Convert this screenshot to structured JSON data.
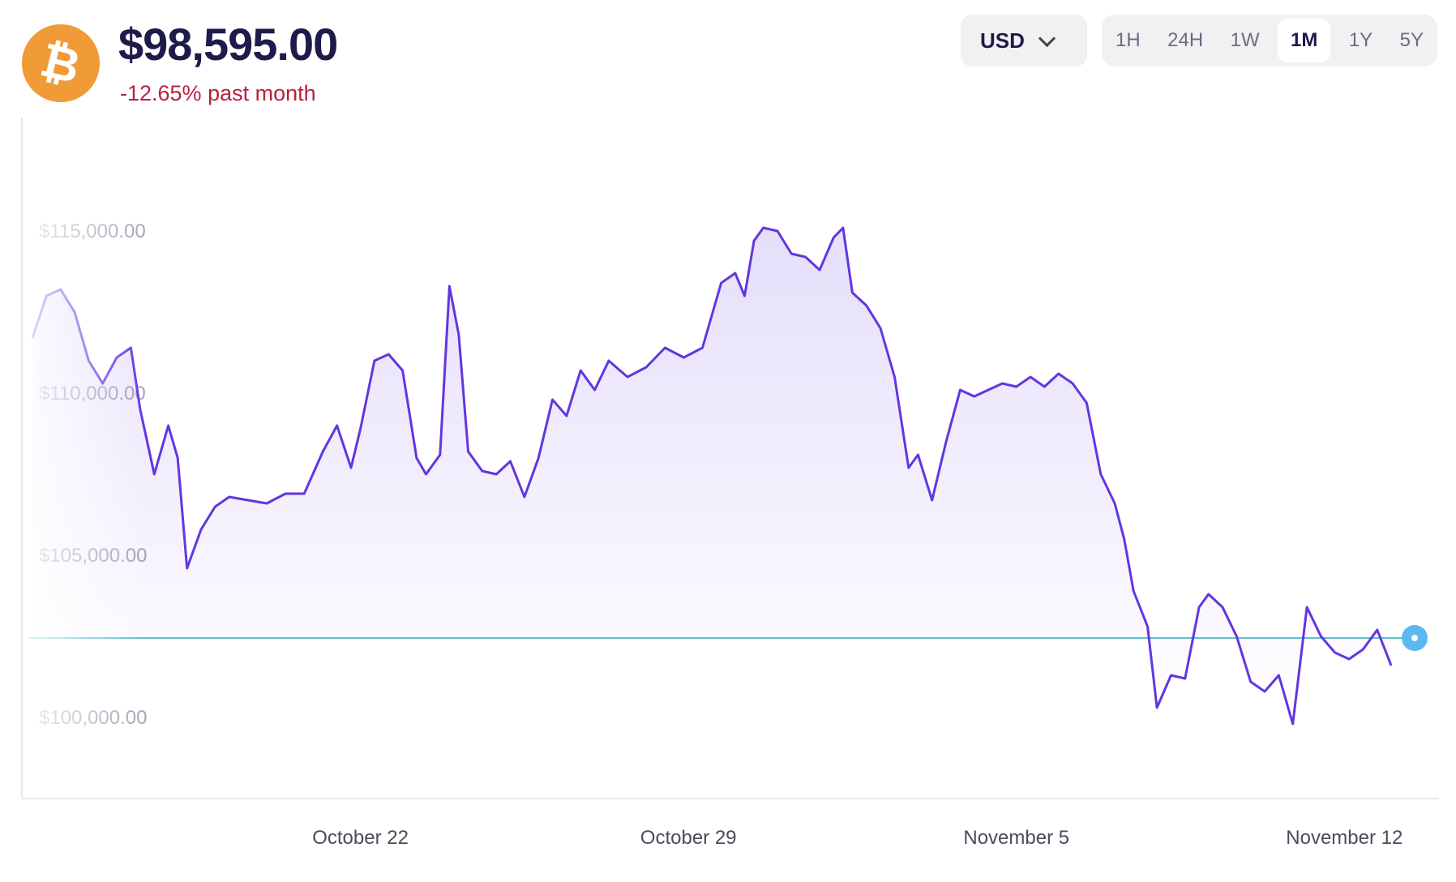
{
  "asset": {
    "icon": "bitcoin-icon",
    "icon_symbol": "₿",
    "icon_color": "#f09a38",
    "price": "$98,595.00",
    "change_text": "-12.65% past month"
  },
  "currency": {
    "selected": "USD"
  },
  "range": {
    "tabs": [
      "1H",
      "24H",
      "1W",
      "1M",
      "1Y",
      "5Y"
    ],
    "active": "1M"
  },
  "chart_data": {
    "type": "area",
    "title": "",
    "xlabel": "",
    "ylabel": "",
    "x_tick_labels": [
      "October 22",
      "October 29",
      "November 5",
      "November 12"
    ],
    "y_tick_labels": [
      "$115,000.00",
      "$110,000.00",
      "$105,000.00",
      "$100,000.00"
    ],
    "y_ticks": [
      115000,
      110000,
      105000,
      100000
    ],
    "ylim": [
      97500,
      118500
    ],
    "xlim": [
      0,
      29.5
    ],
    "x_tick_positions": [
      7,
      14,
      21,
      28
    ],
    "grid": false,
    "reference_value": 102450,
    "line_color": "#6236e0",
    "reference_color": "#5bc0cf",
    "marker_color": "#5bb8f0",
    "series": [
      {
        "values": [
          [
            0.0,
            111700
          ],
          [
            0.3,
            113000
          ],
          [
            0.6,
            113200
          ],
          [
            0.9,
            112500
          ],
          [
            1.2,
            111000
          ],
          [
            1.5,
            110300
          ],
          [
            1.8,
            111100
          ],
          [
            2.1,
            111400
          ],
          [
            2.3,
            109500
          ],
          [
            2.6,
            107500
          ],
          [
            2.9,
            109000
          ],
          [
            3.1,
            108000
          ],
          [
            3.3,
            104600
          ],
          [
            3.6,
            105800
          ],
          [
            3.9,
            106500
          ],
          [
            4.2,
            106800
          ],
          [
            4.6,
            106700
          ],
          [
            5.0,
            106600
          ],
          [
            5.4,
            106900
          ],
          [
            5.8,
            106900
          ],
          [
            6.2,
            108200
          ],
          [
            6.5,
            109000
          ],
          [
            6.8,
            107700
          ],
          [
            7.0,
            108900
          ],
          [
            7.3,
            111000
          ],
          [
            7.6,
            111200
          ],
          [
            7.9,
            110700
          ],
          [
            8.2,
            108000
          ],
          [
            8.4,
            107500
          ],
          [
            8.7,
            108100
          ],
          [
            8.9,
            113300
          ],
          [
            9.1,
            111800
          ],
          [
            9.3,
            108200
          ],
          [
            9.6,
            107600
          ],
          [
            9.9,
            107500
          ],
          [
            10.2,
            107900
          ],
          [
            10.5,
            106800
          ],
          [
            10.8,
            108000
          ],
          [
            11.1,
            109800
          ],
          [
            11.4,
            109300
          ],
          [
            11.7,
            110700
          ],
          [
            12.0,
            110100
          ],
          [
            12.3,
            111000
          ],
          [
            12.7,
            110500
          ],
          [
            13.1,
            110800
          ],
          [
            13.5,
            111400
          ],
          [
            13.9,
            111100
          ],
          [
            14.3,
            111400
          ],
          [
            14.7,
            113400
          ],
          [
            15.0,
            113700
          ],
          [
            15.2,
            113000
          ],
          [
            15.4,
            114700
          ],
          [
            15.6,
            115100
          ],
          [
            15.9,
            115000
          ],
          [
            16.2,
            114300
          ],
          [
            16.5,
            114200
          ],
          [
            16.8,
            113800
          ],
          [
            17.1,
            114800
          ],
          [
            17.3,
            115100
          ],
          [
            17.5,
            113100
          ],
          [
            17.8,
            112700
          ],
          [
            18.1,
            112000
          ],
          [
            18.4,
            110500
          ],
          [
            18.7,
            107700
          ],
          [
            18.9,
            108100
          ],
          [
            19.2,
            106700
          ],
          [
            19.5,
            108500
          ],
          [
            19.8,
            110100
          ],
          [
            20.1,
            109900
          ],
          [
            20.4,
            110100
          ],
          [
            20.7,
            110300
          ],
          [
            21.0,
            110200
          ],
          [
            21.3,
            110500
          ],
          [
            21.6,
            110200
          ],
          [
            21.9,
            110600
          ],
          [
            22.2,
            110300
          ],
          [
            22.5,
            109700
          ],
          [
            22.8,
            107500
          ],
          [
            23.1,
            106600
          ],
          [
            23.3,
            105500
          ],
          [
            23.5,
            103900
          ],
          [
            23.8,
            102800
          ],
          [
            24.0,
            100300
          ],
          [
            24.3,
            101300
          ],
          [
            24.6,
            101200
          ],
          [
            24.9,
            103400
          ],
          [
            25.1,
            103800
          ],
          [
            25.4,
            103400
          ],
          [
            25.7,
            102500
          ],
          [
            26.0,
            101100
          ],
          [
            26.3,
            100800
          ],
          [
            26.6,
            101300
          ],
          [
            26.9,
            99800
          ],
          [
            27.2,
            103400
          ],
          [
            27.5,
            102500
          ],
          [
            27.8,
            102000
          ],
          [
            28.1,
            101800
          ],
          [
            28.4,
            102100
          ],
          [
            28.7,
            102700
          ],
          [
            29.0,
            101600
          ]
        ]
      }
    ]
  }
}
